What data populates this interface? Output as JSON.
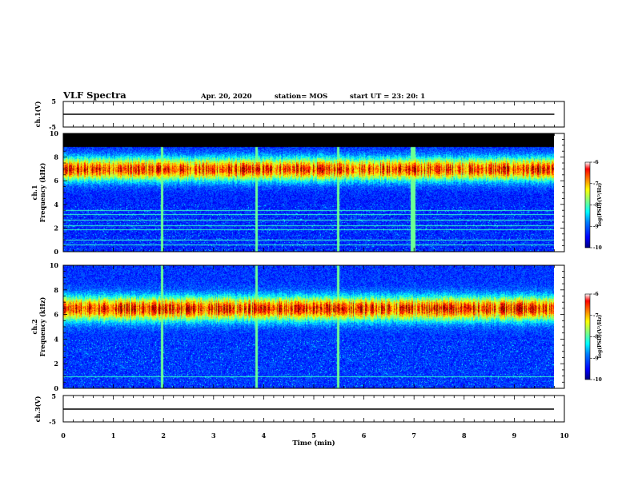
{
  "header": {
    "title": "VLF Spectra",
    "date": "Apr. 20, 2020",
    "station": "station= MOS",
    "start": "start  UT =   23: 20: 1"
  },
  "colors": {
    "spectrogram_colormap": [
      "#000080",
      "#0000ff",
      "#0080ff",
      "#00ffff",
      "#80ff80",
      "#ffff00",
      "#ff8000",
      "#ff0000",
      "#800000"
    ],
    "saturation_band": "#000000",
    "trace": "#000000"
  },
  "chart_data": [
    {
      "type": "line",
      "panel": "ch1-voltage",
      "ylabel": "ch.1(V)",
      "ylim": [
        -5,
        5
      ],
      "yticks": [
        "5",
        "-5"
      ],
      "x": [
        0,
        9.8
      ],
      "series": [
        {
          "values": [
            0,
            0
          ]
        }
      ]
    },
    {
      "type": "heatmap",
      "panel": "ch1-spectrogram",
      "ylabel": "ch.1\nFrequency (kHz)",
      "ylim": [
        0,
        10
      ],
      "yticks": [
        "0",
        "2",
        "4",
        "6",
        "8",
        "10"
      ],
      "x_range": [
        0,
        9.8
      ],
      "colorbar": {
        "label": "log(PSD)(V²/Hz)",
        "range": [
          -10,
          -6
        ],
        "ticks": [
          "-6",
          "-7",
          "-8",
          "-9",
          "-10"
        ]
      },
      "band_max_kHz": 7.0,
      "band_width_kHz": 1.0,
      "saturated_above_kHz": 8.9,
      "bright_lines_kHz": [
        0.6,
        1.0,
        1.9,
        2.2,
        2.7,
        3.2,
        3.5
      ],
      "spike_times_min": [
        1.97,
        3.86,
        5.48,
        6.95,
        7.0
      ]
    },
    {
      "type": "heatmap",
      "panel": "ch2-spectrogram",
      "ylabel": "ch.2\nFrequency (kHz)",
      "ylim": [
        0,
        10
      ],
      "yticks": [
        "0",
        "2",
        "4",
        "6",
        "8",
        "10"
      ],
      "x_range": [
        0,
        9.8
      ],
      "colorbar": {
        "label": "log(PSD)(V²/Hz)",
        "range": [
          -10,
          -6
        ],
        "ticks": [
          "-6",
          "-7",
          "-8",
          "-9",
          "-10"
        ]
      },
      "band_max_kHz": 6.5,
      "band_width_kHz": 1.0,
      "bright_lines_kHz": [
        1.0
      ],
      "spike_times_min": [
        1.97,
        3.86,
        5.48
      ]
    },
    {
      "type": "line",
      "panel": "ch3-voltage",
      "ylabel": "ch.3(V)",
      "ylim": [
        -5,
        5
      ],
      "yticks": [
        "5",
        "-5"
      ],
      "x": [
        0,
        9.8
      ],
      "series": [
        {
          "values": [
            0,
            0
          ]
        }
      ]
    }
  ],
  "x_axis": {
    "label": "Time (min)",
    "range": [
      0,
      10
    ],
    "ticks": [
      "0",
      "1",
      "2",
      "3",
      "4",
      "5",
      "6",
      "7",
      "8",
      "9",
      "10"
    ]
  }
}
